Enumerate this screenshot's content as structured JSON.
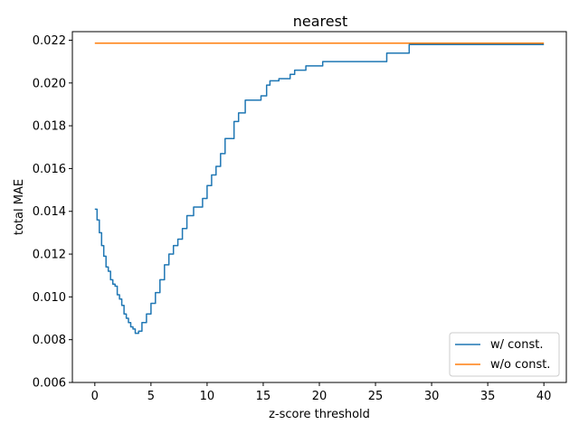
{
  "chart_data": {
    "type": "line",
    "title": "nearest",
    "xlabel": "z-score threshold",
    "ylabel": "total MAE",
    "xlim": [
      -2,
      42
    ],
    "ylim": [
      0.006,
      0.0224
    ],
    "xticks": [
      0,
      5,
      10,
      15,
      20,
      25,
      30,
      35,
      40
    ],
    "xtick_labels": [
      "0",
      "5",
      "10",
      "15",
      "20",
      "25",
      "30",
      "35",
      "40"
    ],
    "yticks": [
      0.006,
      0.008,
      0.01,
      0.012,
      0.014,
      0.016,
      0.018,
      0.02,
      0.022
    ],
    "ytick_labels": [
      "0.006",
      "0.008",
      "0.010",
      "0.012",
      "0.014",
      "0.016",
      "0.018",
      "0.020",
      "0.022"
    ],
    "grid": false,
    "legend_position": "lower-right",
    "series": [
      {
        "name": "w/ const.",
        "color": "#1f77b4",
        "step": true,
        "points": [
          [
            0.0,
            0.0141
          ],
          [
            0.2,
            0.0136
          ],
          [
            0.4,
            0.013
          ],
          [
            0.6,
            0.0124
          ],
          [
            0.8,
            0.0119
          ],
          [
            1.0,
            0.0114
          ],
          [
            1.2,
            0.0112
          ],
          [
            1.4,
            0.0108
          ],
          [
            1.6,
            0.0106
          ],
          [
            1.8,
            0.0105
          ],
          [
            2.0,
            0.0101
          ],
          [
            2.2,
            0.0099
          ],
          [
            2.4,
            0.0096
          ],
          [
            2.6,
            0.0092
          ],
          [
            2.8,
            0.009
          ],
          [
            3.0,
            0.0088
          ],
          [
            3.2,
            0.0086
          ],
          [
            3.4,
            0.0085
          ],
          [
            3.6,
            0.0083
          ],
          [
            3.9,
            0.0084
          ],
          [
            4.2,
            0.0088
          ],
          [
            4.6,
            0.0092
          ],
          [
            5.0,
            0.0097
          ],
          [
            5.4,
            0.0102
          ],
          [
            5.8,
            0.0108
          ],
          [
            6.2,
            0.0115
          ],
          [
            6.6,
            0.012
          ],
          [
            7.0,
            0.0124
          ],
          [
            7.4,
            0.0127
          ],
          [
            7.8,
            0.0132
          ],
          [
            8.2,
            0.0138
          ],
          [
            8.8,
            0.0142
          ],
          [
            9.6,
            0.0146
          ],
          [
            10.0,
            0.0152
          ],
          [
            10.4,
            0.0157
          ],
          [
            10.8,
            0.0161
          ],
          [
            11.2,
            0.0167
          ],
          [
            11.6,
            0.0174
          ],
          [
            12.4,
            0.0182
          ],
          [
            12.8,
            0.0186
          ],
          [
            13.4,
            0.0192
          ],
          [
            14.8,
            0.0194
          ],
          [
            15.3,
            0.0199
          ],
          [
            15.6,
            0.0201
          ],
          [
            16.4,
            0.0202
          ],
          [
            17.4,
            0.0204
          ],
          [
            17.8,
            0.0206
          ],
          [
            18.8,
            0.0208
          ],
          [
            20.3,
            0.021
          ],
          [
            26.0,
            0.0214
          ],
          [
            28.0,
            0.0218
          ],
          [
            40.0,
            0.0218
          ]
        ]
      },
      {
        "name": "w/o const.",
        "color": "#ff7f0e",
        "step": false,
        "points": [
          [
            0.0,
            0.02186
          ],
          [
            40.0,
            0.02186
          ]
        ]
      }
    ]
  }
}
